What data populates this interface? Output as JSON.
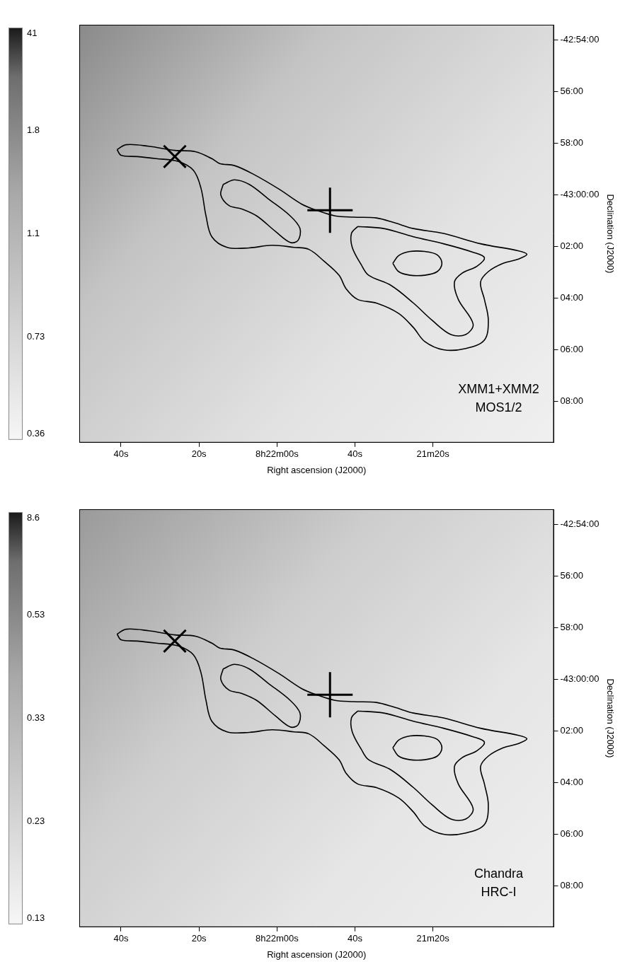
{
  "chart_data": [
    {
      "type": "contour",
      "x_label": "Right ascension (J2000)",
      "y_label": "Declination (J2000)",
      "annotation": [
        "XMM1+XMM2",
        "MOS1/2"
      ],
      "xlim": [
        30170.7,
        30049.0
      ],
      "xticks": [
        {
          "value": 30160,
          "label": "40s"
        },
        {
          "value": 30140,
          "label": "20s"
        },
        {
          "value": 30120,
          "label": "8h22m00s"
        },
        {
          "value": 30100,
          "label": "40s"
        },
        {
          "value": 30080,
          "label": "21m20s"
        }
      ],
      "ylim": [
        -2589.6,
        -2573.4
      ],
      "yticks": [
        {
          "value": -2574,
          "label": "-42:54:00"
        },
        {
          "value": -2576,
          "label": "56:00"
        },
        {
          "value": -2578,
          "label": "58:00"
        },
        {
          "value": -2580,
          "label": "-43:00:00"
        },
        {
          "value": -2582,
          "label": "02:00"
        },
        {
          "value": -2584,
          "label": "04:00"
        },
        {
          "value": -2586,
          "label": "06:00"
        },
        {
          "value": -2588,
          "label": "08:00"
        }
      ],
      "grid": false,
      "colorbar": {
        "ticks": [
          0.36,
          0.73,
          1.1,
          1.8,
          41
        ]
      },
      "series": [
        {
          "type": "line",
          "color": "#000000",
          "values": [
            [
              30161.0,
              -2578.24
            ],
            [
              30158.7,
              -2578.05
            ],
            [
              30152.9,
              -2578.11
            ],
            [
              30146.2,
              -2578.27
            ],
            [
              30140.9,
              -2578.32
            ],
            [
              30136.7,
              -2578.59
            ],
            [
              30134.7,
              -2578.78
            ],
            [
              30130.9,
              -2578.86
            ],
            [
              30126.1,
              -2579.19
            ],
            [
              30119.4,
              -2579.78
            ],
            [
              30113.7,
              -2580.35
            ],
            [
              30109.9,
              -2580.59
            ],
            [
              30105.1,
              -2580.81
            ],
            [
              30100.3,
              -2580.86
            ],
            [
              30094.5,
              -2580.89
            ],
            [
              30089.8,
              -2581.08
            ],
            [
              30085.0,
              -2581.3
            ],
            [
              30077.3,
              -2581.49
            ],
            [
              30067.8,
              -2581.89
            ],
            [
              30058.2,
              -2582.16
            ],
            [
              30055.9,
              -2582.3
            ],
            [
              30058.2,
              -2582.49
            ],
            [
              30062.0,
              -2582.65
            ],
            [
              30065.8,
              -2582.97
            ],
            [
              30067.8,
              -2583.38
            ],
            [
              30066.8,
              -2584.05
            ],
            [
              30065.8,
              -2584.86
            ],
            [
              30066.8,
              -2585.62
            ],
            [
              30071.6,
              -2585.95
            ],
            [
              30077.3,
              -2586.0
            ],
            [
              30082.1,
              -2585.68
            ],
            [
              30085.0,
              -2585.14
            ],
            [
              30088.8,
              -2584.59
            ],
            [
              30094.5,
              -2584.19
            ],
            [
              30099.3,
              -2584.05
            ],
            [
              30102.2,
              -2583.65
            ],
            [
              30104.1,
              -2583.11
            ],
            [
              30107.9,
              -2582.57
            ],
            [
              30111.8,
              -2582.11
            ],
            [
              30115.6,
              -2582.03
            ],
            [
              30121.3,
              -2581.95
            ],
            [
              30127.1,
              -2582.05
            ],
            [
              30132.8,
              -2582.03
            ],
            [
              30136.7,
              -2581.62
            ],
            [
              30138.2,
              -2580.81
            ],
            [
              30139.5,
              -2579.73
            ],
            [
              30141.4,
              -2579.05
            ],
            [
              30145.3,
              -2578.7
            ],
            [
              30151.0,
              -2578.59
            ],
            [
              30155.8,
              -2578.51
            ],
            [
              30160.0,
              -2578.46
            ],
            [
              30161.0,
              -2578.24
            ]
          ]
        },
        {
          "type": "line",
          "color": "#000000",
          "values": [
            [
              30133.8,
              -2579.59
            ],
            [
              30130.9,
              -2579.41
            ],
            [
              30127.1,
              -2579.59
            ],
            [
              30122.3,
              -2580.14
            ],
            [
              30116.6,
              -2580.81
            ],
            [
              30114.1,
              -2581.3
            ],
            [
              30114.6,
              -2581.76
            ],
            [
              30116.6,
              -2581.84
            ],
            [
              30120.4,
              -2581.41
            ],
            [
              30125.2,
              -2580.81
            ],
            [
              30129.0,
              -2580.54
            ],
            [
              30132.3,
              -2580.41
            ],
            [
              30134.4,
              -2580.0
            ],
            [
              30133.8,
              -2579.59
            ]
          ]
        },
        {
          "type": "line",
          "color": "#000000",
          "values": [
            [
              30099.3,
              -2581.22
            ],
            [
              30092.6,
              -2581.3
            ],
            [
              30085.0,
              -2581.62
            ],
            [
              30077.3,
              -2581.89
            ],
            [
              30069.7,
              -2582.22
            ],
            [
              30066.8,
              -2582.43
            ],
            [
              30068.7,
              -2582.76
            ],
            [
              30072.5,
              -2583.03
            ],
            [
              30074.5,
              -2583.38
            ],
            [
              30073.5,
              -2584.05
            ],
            [
              30069.7,
              -2585.0
            ],
            [
              30071.6,
              -2585.41
            ],
            [
              30075.4,
              -2585.41
            ],
            [
              30080.2,
              -2584.86
            ],
            [
              30085.0,
              -2584.19
            ],
            [
              30090.7,
              -2583.51
            ],
            [
              30096.5,
              -2583.11
            ],
            [
              30098.4,
              -2582.7
            ],
            [
              30100.7,
              -2582.03
            ],
            [
              30100.9,
              -2581.49
            ],
            [
              30099.3,
              -2581.22
            ]
          ]
        },
        {
          "type": "line",
          "color": "#000000",
          "values": [
            [
              30090.3,
              -2582.65
            ],
            [
              30088.8,
              -2582.35
            ],
            [
              30085.9,
              -2582.19
            ],
            [
              30082.1,
              -2582.19
            ],
            [
              30078.9,
              -2582.32
            ],
            [
              30077.7,
              -2582.65
            ],
            [
              30078.9,
              -2582.97
            ],
            [
              30082.1,
              -2583.11
            ],
            [
              30085.9,
              -2583.11
            ],
            [
              30088.8,
              -2582.97
            ],
            [
              30090.3,
              -2582.65
            ]
          ]
        },
        {
          "type": "scatter",
          "marker": "x",
          "color": "#000000",
          "values": [
            [
              30146.2,
              -2578.51
            ]
          ]
        },
        {
          "type": "scatter",
          "marker": "plus",
          "color": "#000000",
          "values": [
            [
              30106.4,
              -2580.59
            ]
          ]
        }
      ]
    },
    {
      "type": "contour",
      "x_label": "Right ascension (J2000)",
      "y_label": "Declination (J2000)",
      "annotation": [
        "Chandra",
        "HRC-I"
      ],
      "xlim": [
        30170.7,
        30049.0
      ],
      "xticks": [
        {
          "value": 30160,
          "label": "40s"
        },
        {
          "value": 30140,
          "label": "20s"
        },
        {
          "value": 30120,
          "label": "8h22m00s"
        },
        {
          "value": 30100,
          "label": "40s"
        },
        {
          "value": 30080,
          "label": "21m20s"
        }
      ],
      "ylim": [
        -2589.6,
        -2573.4
      ],
      "yticks": [
        {
          "value": -2574,
          "label": "-42:54:00"
        },
        {
          "value": -2576,
          "label": "56:00"
        },
        {
          "value": -2578,
          "label": "58:00"
        },
        {
          "value": -2580,
          "label": "-43:00:00"
        },
        {
          "value": -2582,
          "label": "02:00"
        },
        {
          "value": -2584,
          "label": "04:00"
        },
        {
          "value": -2586,
          "label": "06:00"
        },
        {
          "value": -2588,
          "label": "08:00"
        }
      ],
      "grid": false,
      "colorbar": {
        "ticks": [
          0.13,
          0.23,
          0.33,
          0.53,
          8.6
        ]
      },
      "series": [
        {
          "type": "line",
          "color": "#000000",
          "values": [
            [
              30161.0,
              -2578.24
            ],
            [
              30158.7,
              -2578.05
            ],
            [
              30152.9,
              -2578.11
            ],
            [
              30146.2,
              -2578.27
            ],
            [
              30140.9,
              -2578.32
            ],
            [
              30136.7,
              -2578.59
            ],
            [
              30134.7,
              -2578.78
            ],
            [
              30130.9,
              -2578.86
            ],
            [
              30126.1,
              -2579.19
            ],
            [
              30119.4,
              -2579.78
            ],
            [
              30113.7,
              -2580.35
            ],
            [
              30109.9,
              -2580.59
            ],
            [
              30105.1,
              -2580.81
            ],
            [
              30100.3,
              -2580.86
            ],
            [
              30094.5,
              -2580.89
            ],
            [
              30089.8,
              -2581.08
            ],
            [
              30085.0,
              -2581.3
            ],
            [
              30077.3,
              -2581.49
            ],
            [
              30067.8,
              -2581.89
            ],
            [
              30058.2,
              -2582.16
            ],
            [
              30055.9,
              -2582.3
            ],
            [
              30058.2,
              -2582.49
            ],
            [
              30062.0,
              -2582.65
            ],
            [
              30065.8,
              -2582.97
            ],
            [
              30067.8,
              -2583.38
            ],
            [
              30066.8,
              -2584.05
            ],
            [
              30065.8,
              -2584.86
            ],
            [
              30066.8,
              -2585.62
            ],
            [
              30071.6,
              -2585.95
            ],
            [
              30077.3,
              -2586.0
            ],
            [
              30082.1,
              -2585.68
            ],
            [
              30085.0,
              -2585.14
            ],
            [
              30088.8,
              -2584.59
            ],
            [
              30094.5,
              -2584.19
            ],
            [
              30099.3,
              -2584.05
            ],
            [
              30102.2,
              -2583.65
            ],
            [
              30104.1,
              -2583.11
            ],
            [
              30107.9,
              -2582.57
            ],
            [
              30111.8,
              -2582.11
            ],
            [
              30115.6,
              -2582.03
            ],
            [
              30121.3,
              -2581.95
            ],
            [
              30127.1,
              -2582.05
            ],
            [
              30132.8,
              -2582.03
            ],
            [
              30136.7,
              -2581.62
            ],
            [
              30138.2,
              -2580.81
            ],
            [
              30139.5,
              -2579.73
            ],
            [
              30141.4,
              -2579.05
            ],
            [
              30145.3,
              -2578.7
            ],
            [
              30151.0,
              -2578.59
            ],
            [
              30155.8,
              -2578.51
            ],
            [
              30160.0,
              -2578.46
            ],
            [
              30161.0,
              -2578.24
            ]
          ]
        },
        {
          "type": "line",
          "color": "#000000",
          "values": [
            [
              30133.8,
              -2579.59
            ],
            [
              30130.9,
              -2579.41
            ],
            [
              30127.1,
              -2579.59
            ],
            [
              30122.3,
              -2580.14
            ],
            [
              30116.6,
              -2580.81
            ],
            [
              30114.1,
              -2581.3
            ],
            [
              30114.6,
              -2581.76
            ],
            [
              30116.6,
              -2581.84
            ],
            [
              30120.4,
              -2581.41
            ],
            [
              30125.2,
              -2580.81
            ],
            [
              30129.0,
              -2580.54
            ],
            [
              30132.3,
              -2580.41
            ],
            [
              30134.4,
              -2580.0
            ],
            [
              30133.8,
              -2579.59
            ]
          ]
        },
        {
          "type": "line",
          "color": "#000000",
          "values": [
            [
              30099.3,
              -2581.22
            ],
            [
              30092.6,
              -2581.3
            ],
            [
              30085.0,
              -2581.62
            ],
            [
              30077.3,
              -2581.89
            ],
            [
              30069.7,
              -2582.22
            ],
            [
              30066.8,
              -2582.43
            ],
            [
              30068.7,
              -2582.76
            ],
            [
              30072.5,
              -2583.03
            ],
            [
              30074.5,
              -2583.38
            ],
            [
              30073.5,
              -2584.05
            ],
            [
              30069.7,
              -2585.0
            ],
            [
              30071.6,
              -2585.41
            ],
            [
              30075.4,
              -2585.41
            ],
            [
              30080.2,
              -2584.86
            ],
            [
              30085.0,
              -2584.19
            ],
            [
              30090.7,
              -2583.51
            ],
            [
              30096.5,
              -2583.11
            ],
            [
              30098.4,
              -2582.7
            ],
            [
              30100.7,
              -2582.03
            ],
            [
              30100.9,
              -2581.49
            ],
            [
              30099.3,
              -2581.22
            ]
          ]
        },
        {
          "type": "line",
          "color": "#000000",
          "values": [
            [
              30090.3,
              -2582.65
            ],
            [
              30088.8,
              -2582.35
            ],
            [
              30085.9,
              -2582.19
            ],
            [
              30082.1,
              -2582.19
            ],
            [
              30078.9,
              -2582.32
            ],
            [
              30077.7,
              -2582.65
            ],
            [
              30078.9,
              -2582.97
            ],
            [
              30082.1,
              -2583.11
            ],
            [
              30085.9,
              -2583.11
            ],
            [
              30088.8,
              -2582.97
            ],
            [
              30090.3,
              -2582.65
            ]
          ]
        },
        {
          "type": "scatter",
          "marker": "x",
          "color": "#000000",
          "values": [
            [
              30146.2,
              -2578.51
            ]
          ]
        },
        {
          "type": "scatter",
          "marker": "plus",
          "color": "#000000",
          "values": [
            [
              30106.4,
              -2580.59
            ]
          ]
        }
      ]
    }
  ]
}
